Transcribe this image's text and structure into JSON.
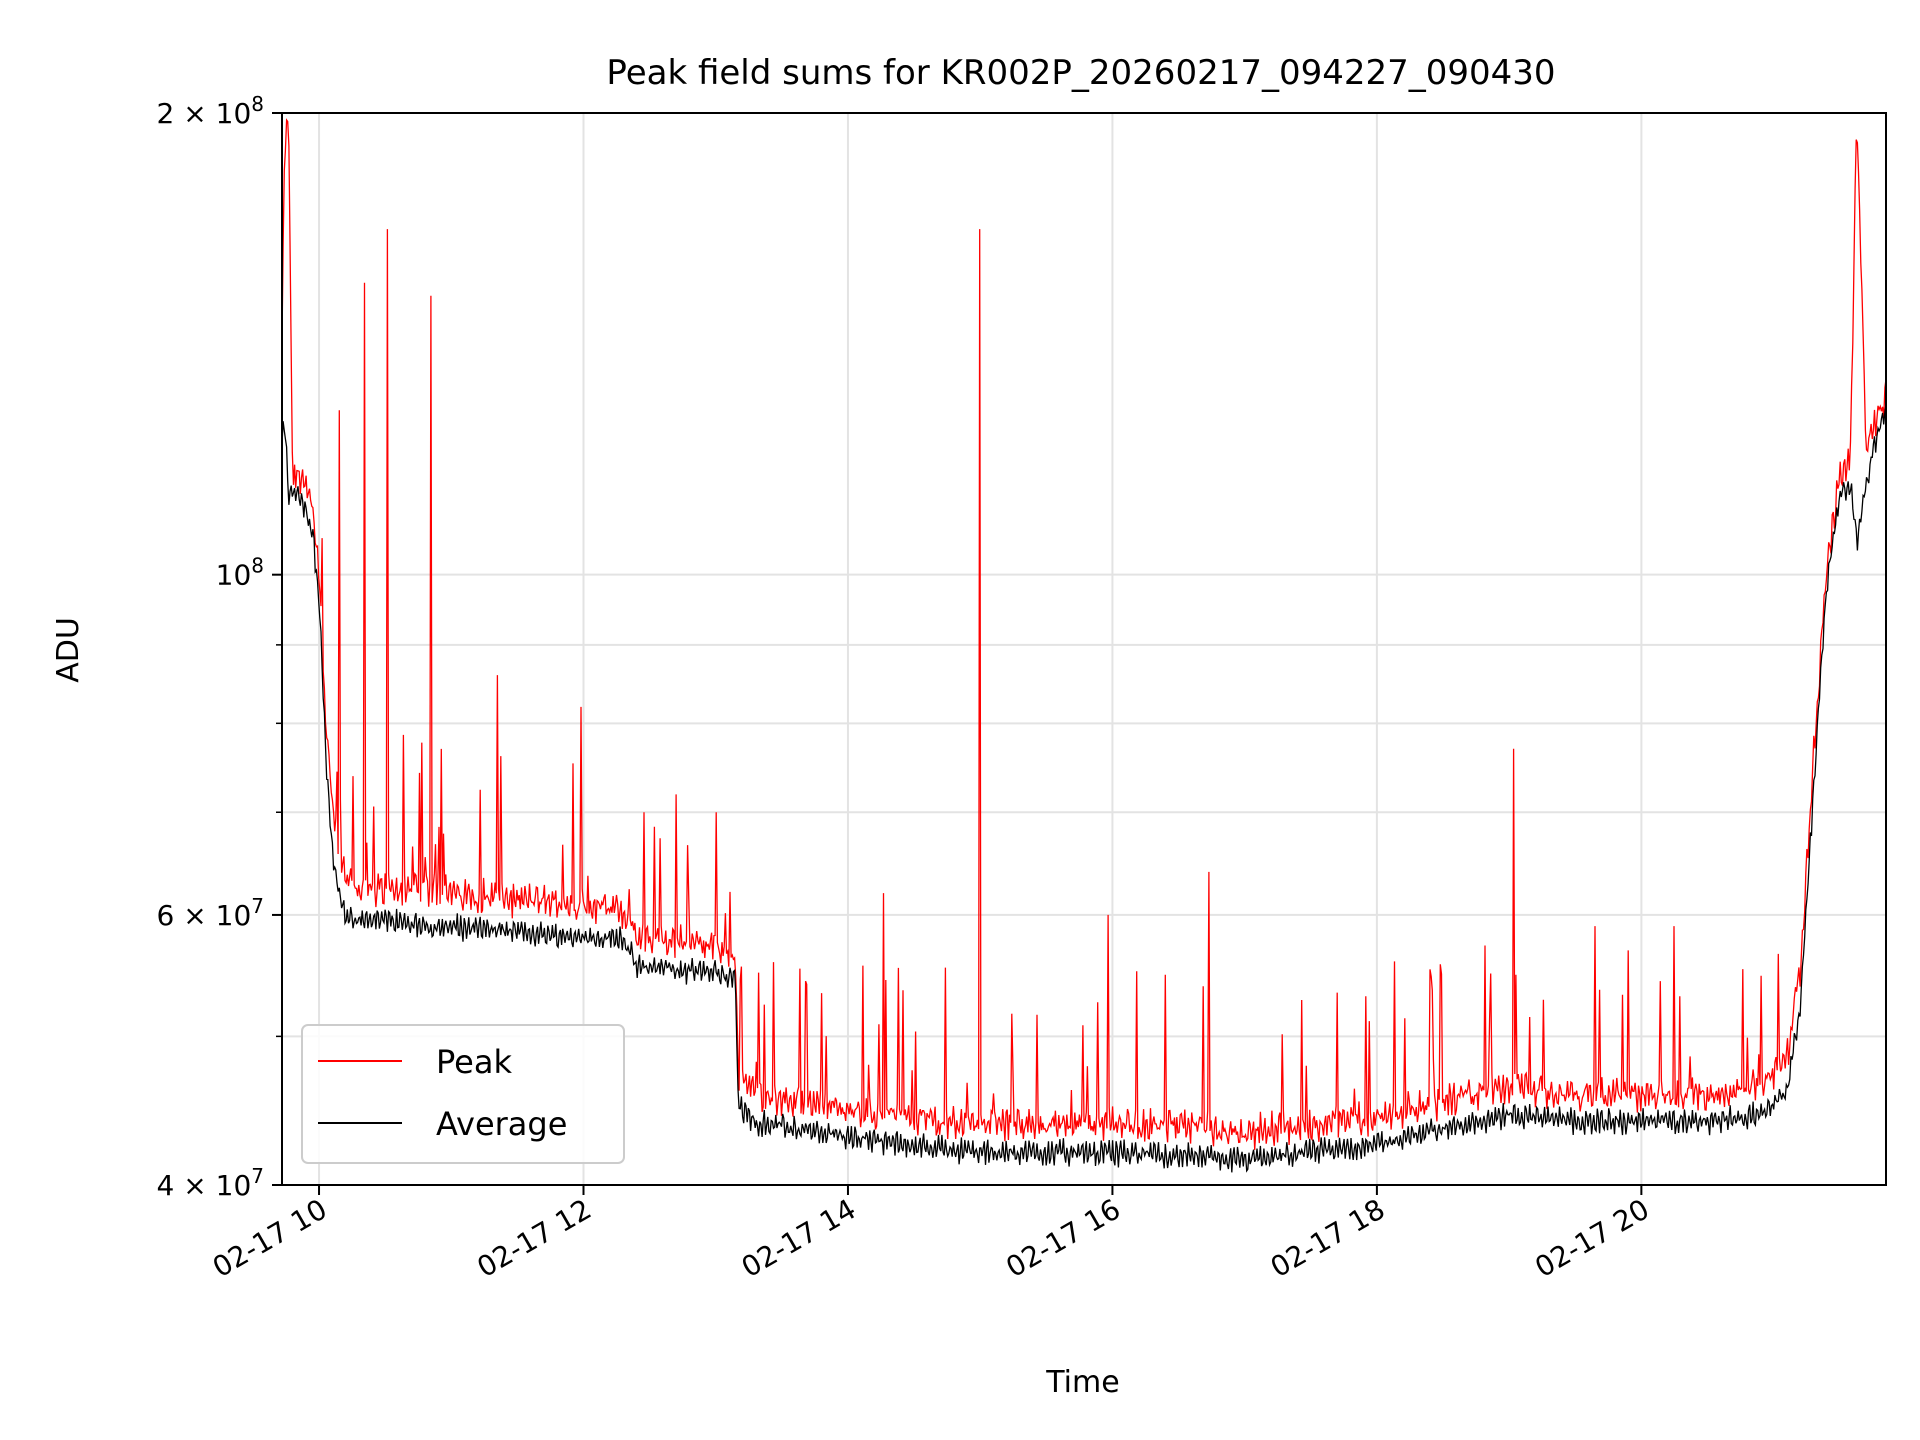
{
  "chart_data": {
    "type": "line",
    "title": "Peak field sums for KR002P_20260217_094227_090430",
    "xlabel": "Time",
    "ylabel": "ADU",
    "yscale": "log",
    "ylim": [
      40000000,
      200000000
    ],
    "xlim_hours": [
      9.72,
      21.85
    ],
    "grid": true,
    "legend_position": "lower-left",
    "x_ticks": [
      {
        "hour": 10,
        "label": "02-17 10"
      },
      {
        "hour": 12,
        "label": "02-17 12"
      },
      {
        "hour": 14,
        "label": "02-17 14"
      },
      {
        "hour": 16,
        "label": "02-17 16"
      },
      {
        "hour": 18,
        "label": "02-17 18"
      },
      {
        "hour": 20,
        "label": "02-17 20"
      }
    ],
    "y_major_ticks": [
      {
        "value": 40000000,
        "base": "4",
        "exp": "7"
      },
      {
        "value": 60000000,
        "base": "6",
        "exp": "7"
      },
      {
        "value": 100000000,
        "base": "",
        "exp": "8"
      },
      {
        "value": 200000000,
        "base": "2",
        "exp": "8"
      }
    ],
    "y_minor_ticks": [
      50000000,
      70000000,
      80000000,
      90000000
    ],
    "series": [
      {
        "name": "Peak",
        "color": "#ff0000",
        "hours": [
          9.72,
          9.74,
          9.77,
          9.8,
          9.85,
          9.9,
          9.95,
          10.0,
          10.05,
          10.1,
          10.15,
          10.2,
          10.3,
          10.5,
          10.8,
          11.0,
          11.5,
          12.0,
          12.3,
          12.4,
          12.5,
          13.0,
          13.15,
          13.17,
          13.3,
          13.6,
          14.0,
          14.5,
          15.0,
          15.5,
          16.0,
          16.5,
          17.0,
          17.5,
          18.0,
          18.5,
          19.0,
          19.5,
          20.0,
          20.5,
          20.9,
          21.1,
          21.2,
          21.3,
          21.4,
          21.5,
          21.58,
          21.63,
          21.7,
          21.8,
          21.85
        ],
        "values": [
          140000000,
          190000000,
          196000000,
          115000000,
          115000000,
          113000000,
          110000000,
          100000000,
          80000000,
          70000000,
          65000000,
          63000000,
          62000000,
          62000000,
          62000000,
          61500000,
          61000000,
          60500000,
          60000000,
          57500000,
          57500000,
          57000000,
          56000000,
          47000000,
          45500000,
          45000000,
          44500000,
          44000000,
          43500000,
          43500000,
          43500000,
          43500000,
          43000000,
          43500000,
          44000000,
          45000000,
          46000000,
          45500000,
          45500000,
          45500000,
          46000000,
          48000000,
          55000000,
          75000000,
          100000000,
          115000000,
          118000000,
          200000000,
          120000000,
          127000000,
          130000000
        ]
      },
      {
        "name": "Average",
        "color": "#000000",
        "hours": [
          9.72,
          9.74,
          9.77,
          9.8,
          9.85,
          9.9,
          9.95,
          10.0,
          10.05,
          10.1,
          10.15,
          10.2,
          10.3,
          10.5,
          10.8,
          11.0,
          11.5,
          12.0,
          12.3,
          12.4,
          12.5,
          13.0,
          13.15,
          13.17,
          13.3,
          13.6,
          14.0,
          14.5,
          15.0,
          15.5,
          16.0,
          16.5,
          17.0,
          17.5,
          18.0,
          18.5,
          19.0,
          19.5,
          20.0,
          20.5,
          20.9,
          21.1,
          21.2,
          21.3,
          21.4,
          21.5,
          21.58,
          21.63,
          21.7,
          21.8,
          21.85
        ],
        "values": [
          122000000,
          125000000,
          113000000,
          113000000,
          113000000,
          110000000,
          107000000,
          97000000,
          77000000,
          66000000,
          62000000,
          60000000,
          59500000,
          59500000,
          59000000,
          59000000,
          58500000,
          58000000,
          58000000,
          55500000,
          55500000,
          55000000,
          54500000,
          45000000,
          44000000,
          43500000,
          43000000,
          42500000,
          42000000,
          42000000,
          42000000,
          41800000,
          41500000,
          42000000,
          42500000,
          43500000,
          44500000,
          44000000,
          44000000,
          44000000,
          44500000,
          46000000,
          52000000,
          72000000,
          98000000,
          113000000,
          115000000,
          105000000,
          115000000,
          125000000,
          128000000
        ]
      }
    ],
    "spikes": [
      {
        "hour": 10.15,
        "value": 128000000
      },
      {
        "hour": 10.34,
        "value": 155000000
      },
      {
        "hour": 10.52,
        "value": 168000000
      },
      {
        "hour": 10.85,
        "value": 152000000
      },
      {
        "hour": 11.35,
        "value": 86000000
      },
      {
        "hour": 11.98,
        "value": 82000000
      },
      {
        "hour": 13.0,
        "value": 70000000
      },
      {
        "hour": 14.27,
        "value": 62000000
      },
      {
        "hour": 15.0,
        "value": 168000000
      },
      {
        "hour": 15.97,
        "value": 60000000
      },
      {
        "hour": 16.73,
        "value": 64000000
      },
      {
        "hour": 19.03,
        "value": 77000000
      },
      {
        "hour": 19.65,
        "value": 59000000
      },
      {
        "hour": 20.25,
        "value": 59000000
      }
    ]
  }
}
